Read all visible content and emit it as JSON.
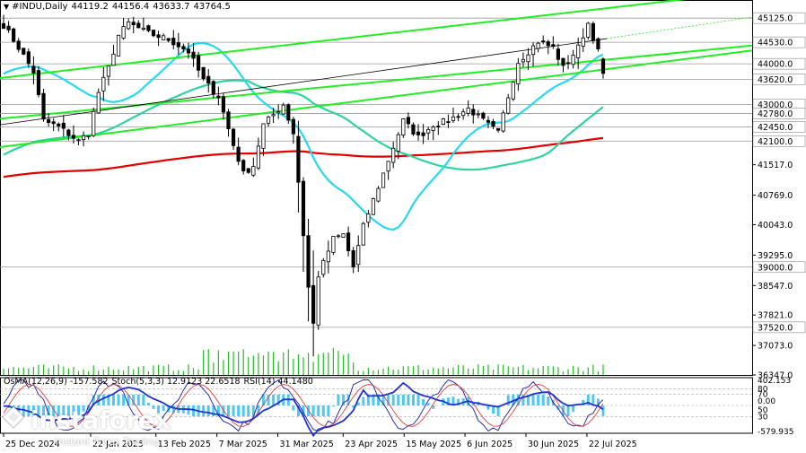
{
  "header": {
    "symbol": "#INDU,Daily",
    "open": "44119.2",
    "high": "44156.4",
    "low": "43633.7",
    "close": "43764.5"
  },
  "oscillator_header": {
    "osma": "OsMA(12,26,9) -157.582",
    "stoch": "Stoch(5,3,3) 12.9123 22.6518",
    "rsi": "RSI(14) 44.1480"
  },
  "watermark": {
    "name": "instaforex",
    "tagline": "Instant Forex Trading"
  },
  "colors": {
    "candle": "#000000",
    "ma_red": "#e00000",
    "ma_teal": "#2ed3a0",
    "ma_cyan": "#28d8f0",
    "channel_green": "#22ee22",
    "volume": "#22bb22",
    "osma_hist": "#4fc8f0",
    "stoch_main": "#1a1aa8",
    "stoch_signal": "#e04040",
    "rsi": "#2233cc"
  },
  "chart_data": {
    "type": "candlestick",
    "title": "#INDU,Daily",
    "ylim": [
      36347,
      45570
    ],
    "y_ticks": [
      "45125.0",
      "44530.0",
      "44000.0",
      "43620.0",
      "43000.0",
      "42780.0",
      "42450.0",
      "42100.0",
      "41517.0",
      "40769.0",
      "40043.0",
      "39295.0",
      "39000.0",
      "38547.0",
      "37821.0",
      "37520.0",
      "37073.0",
      "36347.0"
    ],
    "x_ticks": [
      "25 Dec 2024",
      "22 Jan 2025",
      "13 Feb 2025",
      "7 Mar 2025",
      "31 Mar 2025",
      "23 Apr 2025",
      "15 May 2025",
      "6 Jun 2025",
      "30 Jun 2025",
      "22 Jul 2025"
    ],
    "key_levels": [
      45125,
      44530,
      44000,
      43620,
      43000,
      42780,
      42450,
      42100,
      39000,
      37520
    ],
    "bars": 121,
    "last_close": 43764.5,
    "path_anchors": [
      [
        0,
        44950
      ],
      [
        3,
        44400
      ],
      [
        6,
        43800
      ],
      [
        8,
        42600
      ],
      [
        11,
        42450
      ],
      [
        15,
        42100
      ],
      [
        17,
        42300
      ],
      [
        19,
        43300
      ],
      [
        21,
        43900
      ],
      [
        23,
        44700
      ],
      [
        25,
        45000
      ],
      [
        29,
        44750
      ],
      [
        33,
        44600
      ],
      [
        37,
        44300
      ],
      [
        40,
        43600
      ],
      [
        43,
        43200
      ],
      [
        46,
        42000
      ],
      [
        48,
        41300
      ],
      [
        50,
        41500
      ],
      [
        52,
        42500
      ],
      [
        56,
        43000
      ],
      [
        58,
        42300
      ],
      [
        59,
        41100
      ],
      [
        61,
        38500
      ],
      [
        62,
        37600
      ],
      [
        63,
        38800
      ],
      [
        66,
        39700
      ],
      [
        68,
        39800
      ],
      [
        70,
        39000
      ],
      [
        72,
        40000
      ],
      [
        76,
        41300
      ],
      [
        80,
        42600
      ],
      [
        83,
        42200
      ],
      [
        86,
        42500
      ],
      [
        89,
        42600
      ],
      [
        93,
        42900
      ],
      [
        96,
        42600
      ],
      [
        99,
        42300
      ],
      [
        101,
        43200
      ],
      [
        103,
        44050
      ],
      [
        107,
        44550
      ],
      [
        110,
        44400
      ],
      [
        112,
        43900
      ],
      [
        115,
        44400
      ],
      [
        117,
        45000
      ],
      [
        119,
        44300
      ],
      [
        120,
        43764
      ]
    ],
    "indicators": {
      "osma": -157.582,
      "osma_scale": [
        "402.153",
        "0.00",
        "-579.935"
      ],
      "stoch_main": 12.9123,
      "stoch_signal": 22.6518,
      "stoch_levels": [
        80,
        70,
        50,
        30
      ],
      "rsi": 44.148
    }
  }
}
